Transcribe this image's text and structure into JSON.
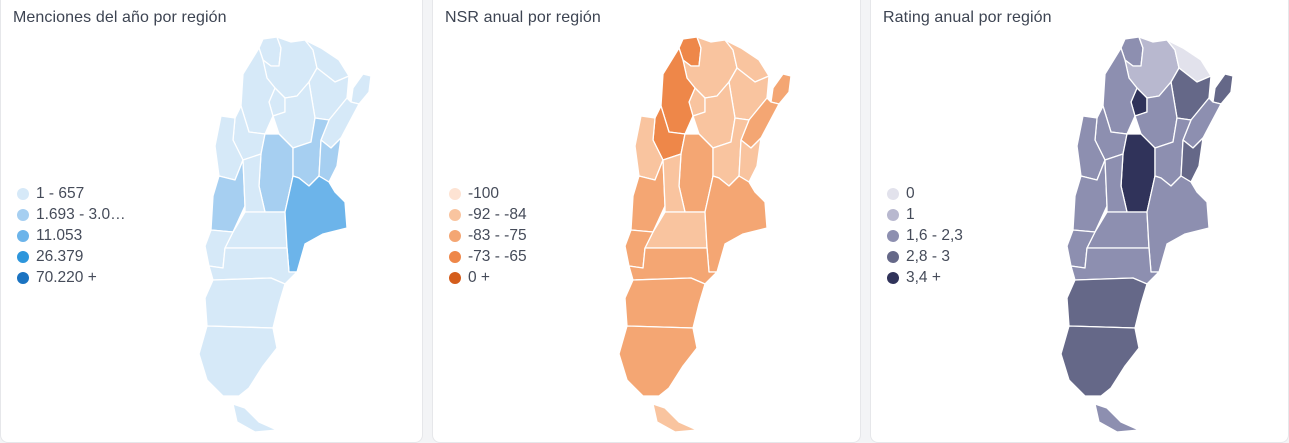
{
  "panels": [
    {
      "title": "Menciones del año por región",
      "legend": [
        {
          "label": "1 - 657",
          "color": "#d6e9f8"
        },
        {
          "label": "1.693 - 3.0…",
          "color": "#a6cff1"
        },
        {
          "label": "11.053",
          "color": "#6cb4ea"
        },
        {
          "label": "26.379",
          "color": "#2d96dc"
        },
        {
          "label": "70.220 +",
          "color": "#1a73c1"
        }
      ],
      "regions": [
        {
          "name": "Jujuy",
          "level": 0
        },
        {
          "name": "Salta",
          "level": 0
        },
        {
          "name": "Formosa",
          "level": 0
        },
        {
          "name": "Misiones",
          "level": 0
        },
        {
          "name": "Chaco",
          "level": 0
        },
        {
          "name": "Tucumán",
          "level": 0
        },
        {
          "name": "Catamarca",
          "level": 0
        },
        {
          "name": "Santiago del Estero",
          "level": 0
        },
        {
          "name": "Corrientes",
          "level": 0
        },
        {
          "name": "La Rioja",
          "level": 0
        },
        {
          "name": "San Juan",
          "level": 0
        },
        {
          "name": "Córdoba",
          "level": 1
        },
        {
          "name": "Santa Fe",
          "level": 1
        },
        {
          "name": "Entre Ríos",
          "level": 1
        },
        {
          "name": "Mendoza",
          "level": 1
        },
        {
          "name": "San Luis",
          "level": 0
        },
        {
          "name": "La Pampa",
          "level": 0
        },
        {
          "name": "Buenos Aires",
          "level": 2
        },
        {
          "name": "Neuquén",
          "level": 0
        },
        {
          "name": "Río Negro",
          "level": 0
        },
        {
          "name": "Chubut",
          "level": 0
        },
        {
          "name": "Santa Cruz",
          "level": 0
        },
        {
          "name": "Tierra del Fuego",
          "level": 0
        }
      ]
    },
    {
      "title": "NSR anual por región",
      "legend": [
        {
          "label": "-100",
          "color": "#fde3d3"
        },
        {
          "label": "-92 - -84",
          "color": "#f9c49f"
        },
        {
          "label": "-83 - -75",
          "color": "#f4a673"
        },
        {
          "label": "-73 - -65",
          "color": "#ee8749"
        },
        {
          "label": "0 +",
          "color": "#d45d1c"
        }
      ],
      "regions": [
        {
          "name": "Jujuy",
          "level": 3
        },
        {
          "name": "Salta",
          "level": 1
        },
        {
          "name": "Formosa",
          "level": 1
        },
        {
          "name": "Misiones",
          "level": 2
        },
        {
          "name": "Chaco",
          "level": 1
        },
        {
          "name": "Tucumán",
          "level": 1
        },
        {
          "name": "Catamarca",
          "level": 3
        },
        {
          "name": "Santiago del Estero",
          "level": 1
        },
        {
          "name": "Corrientes",
          "level": 2
        },
        {
          "name": "La Rioja",
          "level": 3
        },
        {
          "name": "San Juan",
          "level": 1
        },
        {
          "name": "Córdoba",
          "level": 2
        },
        {
          "name": "Santa Fe",
          "level": 1
        },
        {
          "name": "Entre Ríos",
          "level": 1
        },
        {
          "name": "Mendoza",
          "level": 2
        },
        {
          "name": "San Luis",
          "level": 1
        },
        {
          "name": "La Pampa",
          "level": 1
        },
        {
          "name": "Buenos Aires",
          "level": 2
        },
        {
          "name": "Neuquén",
          "level": 2
        },
        {
          "name": "Río Negro",
          "level": 2
        },
        {
          "name": "Chubut",
          "level": 2
        },
        {
          "name": "Santa Cruz",
          "level": 2
        },
        {
          "name": "Tierra del Fuego",
          "level": 1
        }
      ]
    },
    {
      "title": "Rating anual por región",
      "legend": [
        {
          "label": "0",
          "color": "#e2e2ec"
        },
        {
          "label": "1",
          "color": "#b8b8cf"
        },
        {
          "label": "1,6 - 2,3",
          "color": "#8d8fb0"
        },
        {
          "label": "2,8 - 3",
          "color": "#656888"
        },
        {
          "label": "3,4 +",
          "color": "#30335a"
        }
      ],
      "regions": [
        {
          "name": "Jujuy",
          "level": 2
        },
        {
          "name": "Salta",
          "level": 1
        },
        {
          "name": "Formosa",
          "level": 0
        },
        {
          "name": "Misiones",
          "level": 3
        },
        {
          "name": "Chaco",
          "level": 3
        },
        {
          "name": "Tucumán",
          "level": 4
        },
        {
          "name": "Catamarca",
          "level": 2
        },
        {
          "name": "Santiago del Estero",
          "level": 2
        },
        {
          "name": "Corrientes",
          "level": 2
        },
        {
          "name": "La Rioja",
          "level": 2
        },
        {
          "name": "San Juan",
          "level": 2
        },
        {
          "name": "Córdoba",
          "level": 4
        },
        {
          "name": "Santa Fe",
          "level": 2
        },
        {
          "name": "Entre Ríos",
          "level": 3
        },
        {
          "name": "Mendoza",
          "level": 2
        },
        {
          "name": "San Luis",
          "level": 2
        },
        {
          "name": "La Pampa",
          "level": 2
        },
        {
          "name": "Buenos Aires",
          "level": 2
        },
        {
          "name": "Neuquén",
          "level": 2
        },
        {
          "name": "Río Negro",
          "level": 2
        },
        {
          "name": "Chubut",
          "level": 3
        },
        {
          "name": "Santa Cruz",
          "level": 3
        },
        {
          "name": "Tierra del Fuego",
          "level": 2
        }
      ]
    }
  ]
}
